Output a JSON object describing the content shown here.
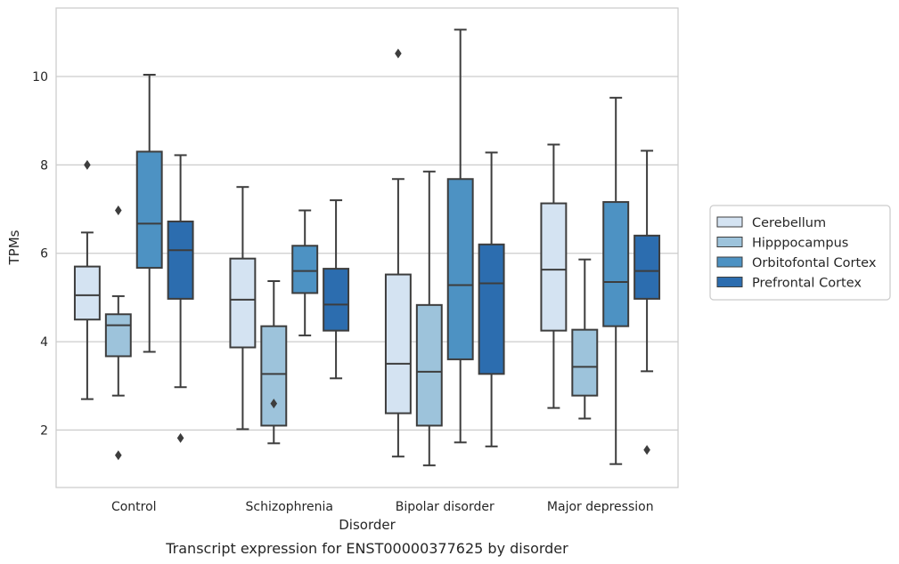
{
  "chart_data": {
    "type": "box",
    "caption": "Transcript expression for ENST00000377625 by disorder",
    "xlabel": "Disorder",
    "ylabel": "TPMs",
    "ylim": [
      0.7,
      11.55
    ],
    "yticks": [
      2,
      4,
      6,
      8,
      10
    ],
    "grid": "horizontal",
    "legend_position": "right",
    "categories": [
      "Control",
      "Schizophrenia",
      "Bipolar disorder",
      "Major depression"
    ],
    "series": [
      {
        "name": "Cerebellum",
        "color": "#d4e3f2",
        "boxes": [
          {
            "whislo": 2.7,
            "q1": 4.5,
            "med": 5.05,
            "q3": 5.7,
            "whishi": 6.47,
            "fliers": [
              8.0
            ]
          },
          {
            "whislo": 2.02,
            "q1": 3.87,
            "med": 4.95,
            "q3": 5.88,
            "whishi": 7.5,
            "fliers": []
          },
          {
            "whislo": 1.4,
            "q1": 2.38,
            "med": 3.5,
            "q3": 5.52,
            "whishi": 7.68,
            "fliers": [
              10.52
            ]
          },
          {
            "whislo": 2.5,
            "q1": 4.25,
            "med": 5.63,
            "q3": 7.13,
            "whishi": 8.46,
            "fliers": []
          }
        ]
      },
      {
        "name": "Hipppocampus",
        "color": "#9dc3db",
        "boxes": [
          {
            "whislo": 2.78,
            "q1": 3.67,
            "med": 4.37,
            "q3": 4.62,
            "whishi": 5.03,
            "fliers": [
              6.97,
              1.43
            ]
          },
          {
            "whislo": 1.7,
            "q1": 2.1,
            "med": 3.27,
            "q3": 4.35,
            "whishi": 5.37,
            "fliers": [
              2.6
            ]
          },
          {
            "whislo": 1.2,
            "q1": 2.1,
            "med": 3.32,
            "q3": 4.83,
            "whishi": 7.85,
            "fliers": []
          },
          {
            "whislo": 2.26,
            "q1": 2.78,
            "med": 3.43,
            "q3": 4.27,
            "whishi": 5.86,
            "fliers": []
          }
        ]
      },
      {
        "name": "Orbitofontal Cortex",
        "color": "#4d92c3",
        "boxes": [
          {
            "whislo": 3.77,
            "q1": 5.67,
            "med": 6.67,
            "q3": 8.3,
            "whishi": 10.04,
            "fliers": []
          },
          {
            "whislo": 4.14,
            "q1": 5.1,
            "med": 5.6,
            "q3": 6.17,
            "whishi": 6.97,
            "fliers": []
          },
          {
            "whislo": 1.72,
            "q1": 3.6,
            "med": 5.28,
            "q3": 7.68,
            "whishi": 11.06,
            "fliers": []
          },
          {
            "whislo": 1.23,
            "q1": 4.35,
            "med": 5.35,
            "q3": 7.16,
            "whishi": 9.52,
            "fliers": []
          }
        ]
      },
      {
        "name": "Prefrontal Cortex",
        "color": "#2c6daf",
        "boxes": [
          {
            "whislo": 2.97,
            "q1": 4.97,
            "med": 6.07,
            "q3": 6.72,
            "whishi": 8.22,
            "fliers": [
              1.82
            ]
          },
          {
            "whislo": 3.17,
            "q1": 4.25,
            "med": 4.84,
            "q3": 5.65,
            "whishi": 7.2,
            "fliers": []
          },
          {
            "whislo": 1.63,
            "q1": 3.27,
            "med": 5.32,
            "q3": 6.2,
            "whishi": 8.28,
            "fliers": []
          },
          {
            "whislo": 3.33,
            "q1": 4.97,
            "med": 5.6,
            "q3": 6.4,
            "whishi": 8.32,
            "fliers": [
              1.55
            ]
          }
        ]
      }
    ]
  }
}
